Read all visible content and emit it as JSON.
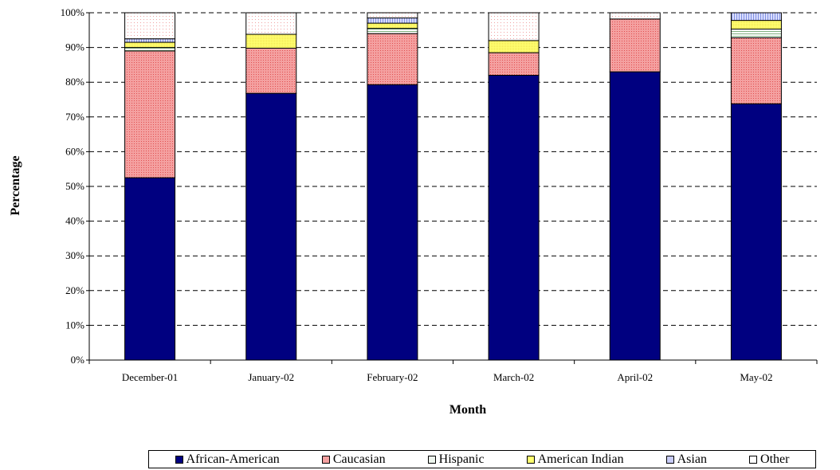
{
  "chart_data": {
    "type": "bar",
    "stacked": true,
    "normalized": true,
    "categories": [
      "December-01",
      "January-02",
      "February-02",
      "March-02",
      "April-02",
      "May-02"
    ],
    "series": [
      {
        "name": "African-American",
        "color": "#000080",
        "values": [
          52.5,
          76.8,
          79.3,
          82.0,
          83.0,
          73.8
        ]
      },
      {
        "name": "Caucasian",
        "color": "#f08080",
        "values": [
          36.5,
          13.0,
          14.7,
          6.5,
          15.2,
          19.0
        ]
      },
      {
        "name": "Hispanic",
        "color": "#e8f4e8",
        "values": [
          1.0,
          0.0,
          1.5,
          0.0,
          0.0,
          2.5
        ]
      },
      {
        "name": "American Indian",
        "color": "#ffff80",
        "values": [
          1.5,
          4.0,
          1.5,
          3.5,
          0.0,
          2.5
        ]
      },
      {
        "name": "Asian",
        "color": "#c0c8f8",
        "values": [
          1.0,
          0.0,
          1.5,
          0.0,
          0.0,
          2.2
        ]
      },
      {
        "name": "Other",
        "color": "#fff4f4",
        "values": [
          7.5,
          6.2,
          1.5,
          8.0,
          1.8,
          0.0
        ]
      }
    ],
    "title": "",
    "xlabel": "Month",
    "ylabel": "Percentage",
    "ylim": [
      0,
      100
    ],
    "yticks": [
      "0%",
      "10%",
      "20%",
      "30%",
      "40%",
      "50%",
      "60%",
      "70%",
      "80%",
      "90%",
      "100%"
    ],
    "grid": "horizontal dashed",
    "legend_position": "bottom"
  }
}
